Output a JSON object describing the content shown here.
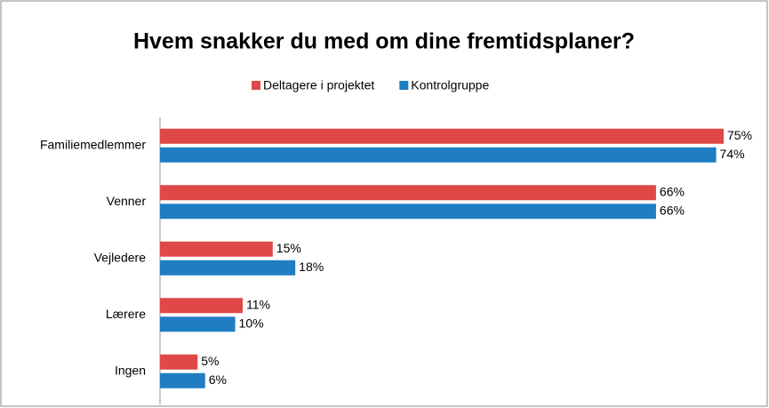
{
  "chart_data": {
    "type": "hbar",
    "title": "Hvem snakker du med om dine fremtidsplaner?",
    "categories": [
      "Familiemedlemmer",
      "Venner",
      "Vejledere",
      "Lærere",
      "Ingen"
    ],
    "series": [
      {
        "name": "Deltagere i projektet",
        "color": "#e04848",
        "values": [
          75,
          66,
          15,
          11,
          5
        ],
        "value_labels": [
          "75%",
          "66%",
          "15%",
          "11%",
          "5%"
        ]
      },
      {
        "name": "Kontrolgruppe",
        "color": "#1f7dc3",
        "values": [
          74,
          66,
          18,
          10,
          6
        ],
        "value_labels": [
          "74%",
          "66%",
          "18%",
          "10%",
          "6%"
        ]
      }
    ],
    "xlim": [
      0,
      75
    ],
    "legend": "top"
  }
}
